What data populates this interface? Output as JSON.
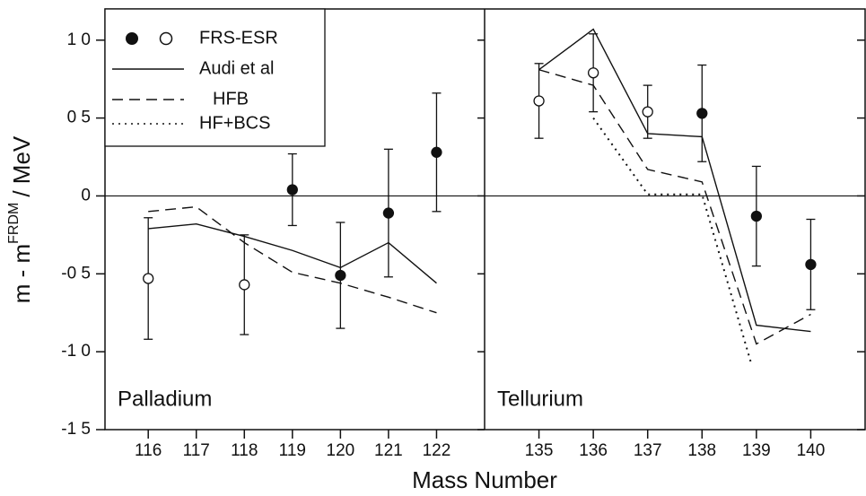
{
  "chart_data": {
    "type": "line",
    "y_label": {
      "main": "m - m",
      "sup": "FRDM",
      "unit": "/ MeV"
    },
    "x_label": "Mass Number",
    "ylim": [
      -1.5,
      1.2
    ],
    "yticks": [
      {
        "value": -1.5,
        "label": "-1 5"
      },
      {
        "value": -1.0,
        "label": "-1 0"
      },
      {
        "value": -0.5,
        "label": "-0 5"
      },
      0,
      {
        "value": 0.5,
        "label": "0 5"
      },
      {
        "value": 1.0,
        "label": "1 0"
      }
    ],
    "legend": [
      {
        "name": "FRS-ESR",
        "style": "points"
      },
      {
        "name": "Audi et al",
        "style": "solid"
      },
      {
        "name": "HFB",
        "style": "dashed"
      },
      {
        "name": "HF+BCS",
        "style": "dotted"
      }
    ],
    "color": "#111111",
    "panels": [
      {
        "label": "Palladium",
        "xlim": [
          115.1,
          123
        ],
        "xticks": [
          116,
          117,
          118,
          119,
          120,
          121,
          122
        ],
        "points": {
          "x": [
            116,
            118,
            119,
            120,
            121,
            122
          ],
          "values": [
            -0.53,
            -0.57,
            0.04,
            -0.51,
            -0.11,
            0.28
          ],
          "errors": [
            0.39,
            0.32,
            0.23,
            0.34,
            0.41,
            0.38
          ],
          "open": [
            true,
            true,
            false,
            false,
            false,
            false
          ]
        },
        "x": [
          116,
          117,
          118,
          119,
          120,
          121,
          122
        ],
        "series": [
          {
            "style": "solid",
            "values": [
              -0.21,
              -0.18,
              -0.26,
              -0.35,
              -0.46,
              -0.3,
              -0.56
            ]
          },
          {
            "style": "dashed",
            "values": [
              -0.1,
              -0.07,
              -0.3,
              -0.49,
              -0.56,
              -0.65,
              -0.75
            ]
          }
        ]
      },
      {
        "label": "Tellurium",
        "xlim": [
          134,
          141
        ],
        "xticks": [
          135,
          136,
          137,
          138,
          139,
          140
        ],
        "points": {
          "x": [
            135,
            136,
            137,
            138,
            139,
            140
          ],
          "values": [
            0.61,
            0.79,
            0.54,
            0.53,
            -0.13,
            -0.44
          ],
          "errors": [
            0.24,
            0.25,
            0.17,
            0.31,
            0.32,
            0.29
          ],
          "open": [
            true,
            true,
            true,
            false,
            false,
            false
          ]
        },
        "x": [
          135,
          136,
          137,
          138,
          139,
          140
        ],
        "series": [
          {
            "style": "solid",
            "values": [
              0.81,
              1.07,
              0.4,
              0.38,
              -0.83,
              -0.87
            ]
          },
          {
            "style": "dashed",
            "values": [
              0.81,
              0.71,
              0.17,
              0.09,
              -0.95,
              -0.76
            ]
          },
          {
            "style": "dotted",
            "x": [
              136,
              137,
              138,
              138.9
            ],
            "values": [
              0.5,
              0.01,
              0.01,
              -1.07
            ]
          }
        ]
      }
    ]
  }
}
